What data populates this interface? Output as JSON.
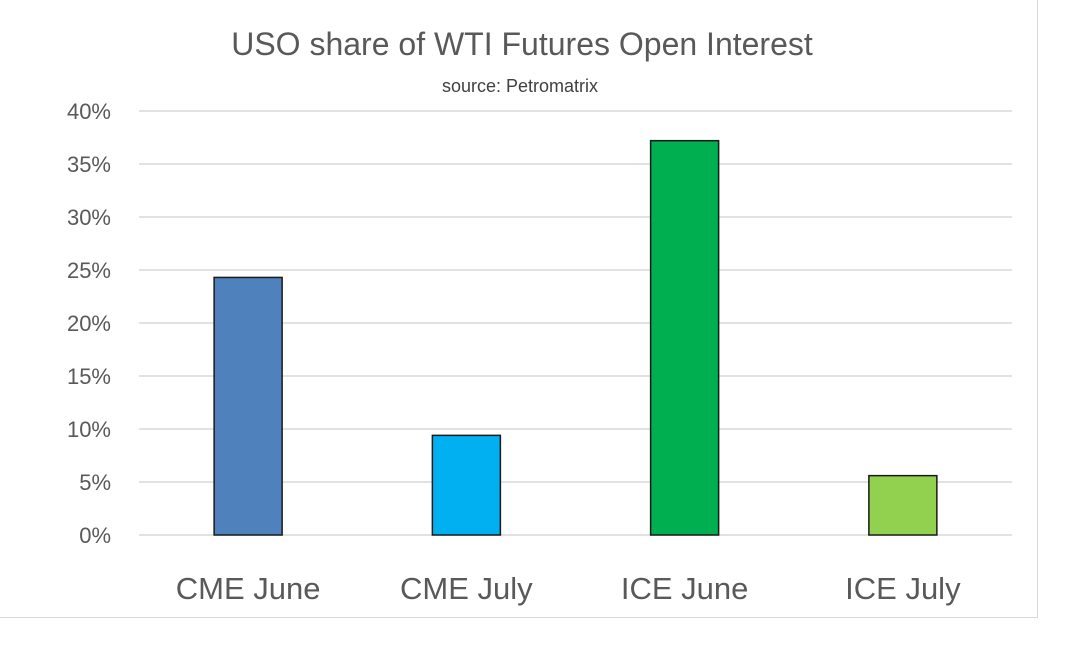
{
  "chart_data": {
    "type": "bar",
    "title": "USO share of WTI Futures Open Interest",
    "subtitle": "source: Petromatrix",
    "xlabel": "",
    "ylabel": "",
    "categories": [
      "CME June",
      "CME July",
      "ICE June",
      "ICE July"
    ],
    "values": [
      24.3,
      9.4,
      37.2,
      5.6
    ],
    "unit": "%",
    "colors": [
      "#4f81bd",
      "#00b0f0",
      "#00b050",
      "#92d050"
    ],
    "ylim": [
      0,
      40
    ],
    "yticks": [
      "0%",
      "5%",
      "10%",
      "15%",
      "20%",
      "25%",
      "30%",
      "35%",
      "40%"
    ],
    "grid": true,
    "legend": "none"
  }
}
